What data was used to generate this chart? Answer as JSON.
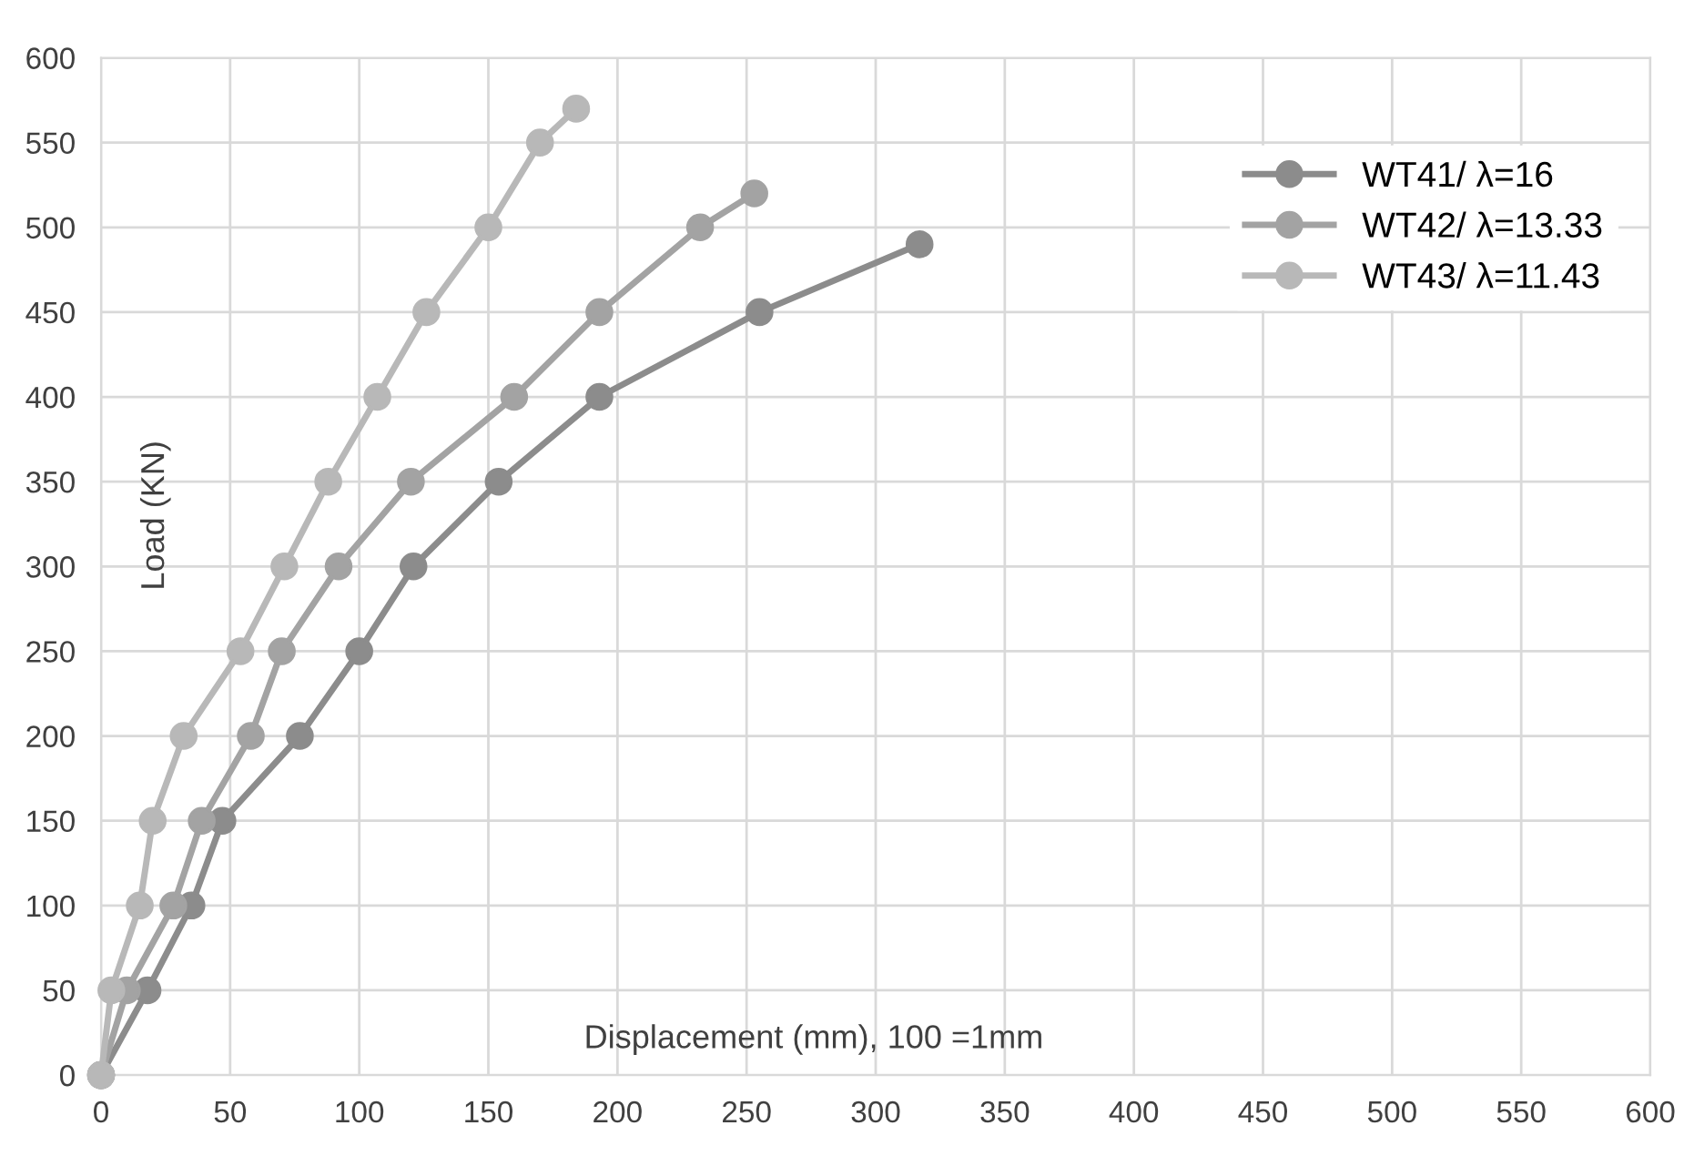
{
  "chart_data": {
    "type": "line",
    "xlabel": "Displacement (mm), 100 =1mm",
    "ylabel": "Load (KN)",
    "xlim": [
      0,
      600
    ],
    "ylim": [
      0,
      600
    ],
    "xticks": [
      0,
      50,
      100,
      150,
      200,
      250,
      300,
      350,
      400,
      450,
      500,
      550,
      600
    ],
    "yticks": [
      0,
      50,
      100,
      150,
      200,
      250,
      300,
      350,
      400,
      450,
      500,
      550,
      600
    ],
    "grid": true,
    "legend": "top right",
    "marker": "circle",
    "line_style": "solid",
    "series": [
      {
        "name": "WT41/ λ=16",
        "color": "#8c8c8c",
        "x": [
          0,
          18,
          35,
          47,
          77,
          100,
          121,
          154,
          193,
          255,
          317
        ],
        "values": [
          0,
          50,
          100,
          150,
          200,
          250,
          300,
          350,
          400,
          450,
          490
        ]
      },
      {
        "name": "WT42/ λ=13.33",
        "color": "#a3a3a3",
        "x": [
          0,
          10,
          28,
          39,
          58,
          70,
          92,
          120,
          160,
          193,
          232,
          253
        ],
        "values": [
          0,
          50,
          100,
          150,
          200,
          250,
          300,
          350,
          400,
          450,
          500,
          520
        ]
      },
      {
        "name": "WT43/ λ=11.43",
        "color": "#b8b8b8",
        "x": [
          0,
          4,
          15,
          20,
          32,
          54,
          71,
          88,
          107,
          126,
          150,
          170,
          184
        ],
        "values": [
          0,
          50,
          100,
          150,
          200,
          250,
          300,
          350,
          400,
          450,
          500,
          550,
          570
        ]
      }
    ]
  }
}
